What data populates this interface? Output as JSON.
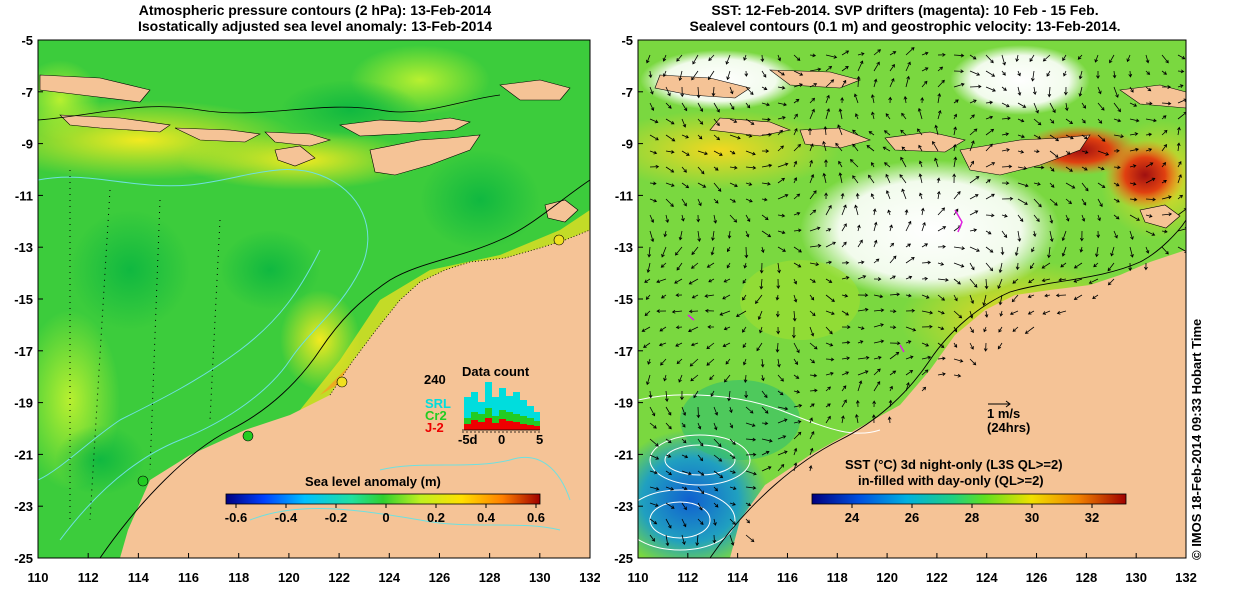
{
  "left_panel": {
    "title_line1": "Atmospheric pressure contours (2 hPa): 13-Feb-2014",
    "title_line2": "Isostatically adjusted sea level anomaly: 13-Feb-2014",
    "colorbar_label": "Sea level anomaly (m)",
    "colorbar_ticks": [
      "-0.6",
      "-0.4",
      "-0.2",
      "0",
      "0.2",
      "0.4",
      "0.6"
    ],
    "inset": {
      "title": "Data count",
      "y_max_label": "240",
      "x_ticks": [
        "-5d",
        "0",
        "5"
      ],
      "series": [
        {
          "name": "SRL",
          "color": "#00dddd"
        },
        {
          "name": "Cr2",
          "color": "#22cc22"
        },
        {
          "name": "J-2",
          "color": "#ee0000"
        }
      ]
    }
  },
  "right_panel": {
    "title_line1": "SST: 12-Feb-2014. SVP drifters (magenta): 10 Feb - 15 Feb.",
    "title_line2": "Sealevel contours (0.1 m) and geostrophic velocity: 13-Feb-2014.",
    "scale_label_1": "1 m/s",
    "scale_label_2": "(24hrs)",
    "colorbar_label_1": "SST (°C)  3d night-only (L3S QL>=2)",
    "colorbar_label_2": "in-filled with day-only (QL>=2)",
    "colorbar_ticks": [
      "24",
      "26",
      "28",
      "30",
      "32"
    ]
  },
  "axes": {
    "x_ticks": [
      "110",
      "112",
      "114",
      "116",
      "118",
      "120",
      "122",
      "124",
      "126",
      "128",
      "130",
      "132"
    ],
    "y_ticks": [
      "-5",
      "-7",
      "-9",
      "-11",
      "-13",
      "-15",
      "-17",
      "-19",
      "-21",
      "-23",
      "-25"
    ]
  },
  "credit": "© IMOS 18-Feb-2014 09:33 Hobart Time",
  "colors": {
    "land": "#f5c396",
    "ocean_green": "#33cc33",
    "contour": "#000000",
    "bathymetry": "#66dddd"
  }
}
